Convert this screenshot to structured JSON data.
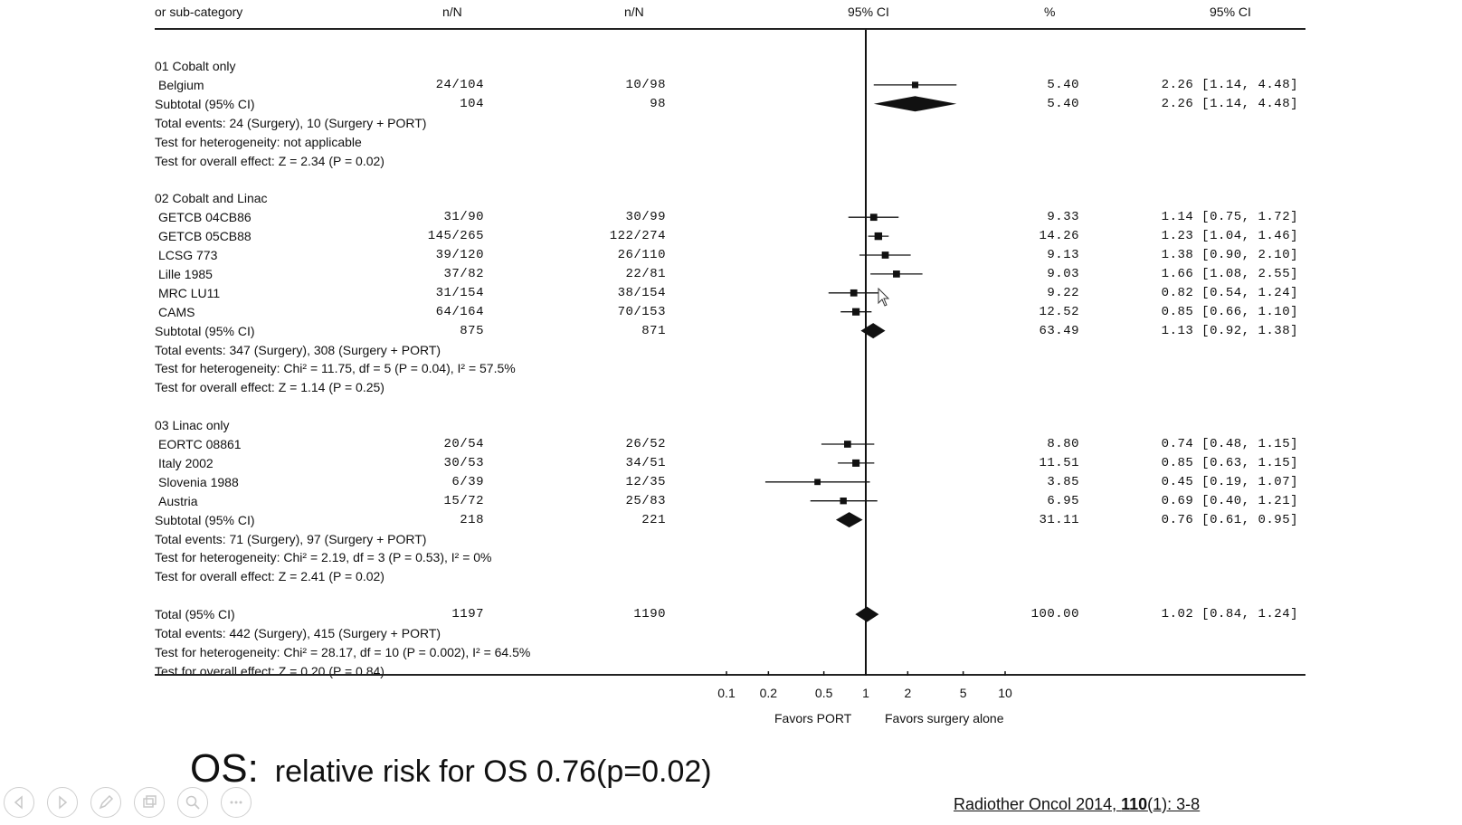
{
  "header": {
    "col_study": "or sub-category",
    "col_treatment": "n/N",
    "col_control": "n/N",
    "col_plot": "95% CI",
    "col_weight": "%",
    "col_ci": "95% CI"
  },
  "groups": [
    {
      "title": "01 Cobalt only",
      "studies": [
        {
          "name": "Belgium",
          "n1": "24/104",
          "n2": "10/98",
          "weight": "5.40",
          "ci_text": "2.26 [1.14, 4.48]",
          "rr": 2.26,
          "lo": 1.14,
          "hi": 4.48
        }
      ],
      "subtotal": {
        "label": "Subtotal (95% CI)",
        "n1": "104",
        "n2": "98",
        "weight": "5.40",
        "ci_text": "2.26 [1.14, 4.48]",
        "rr": 2.26,
        "lo": 1.14,
        "hi": 4.48
      },
      "notes": [
        "Total events: 24 (Surgery), 10 (Surgery + PORT)",
        "Test for heterogeneity: not applicable",
        "Test for overall effect: Z = 2.34 (P = 0.02)"
      ]
    },
    {
      "title": "02 Cobalt and Linac",
      "studies": [
        {
          "name": "GETCB 04CB86",
          "n1": "31/90",
          "n2": "30/99",
          "weight": "9.33",
          "ci_text": "1.14 [0.75, 1.72]",
          "rr": 1.14,
          "lo": 0.75,
          "hi": 1.72
        },
        {
          "name": "GETCB 05CB88",
          "n1": "145/265",
          "n2": "122/274",
          "weight": "14.26",
          "ci_text": "1.23 [1.04, 1.46]",
          "rr": 1.23,
          "lo": 1.04,
          "hi": 1.46
        },
        {
          "name": "LCSG 773",
          "n1": "39/120",
          "n2": "26/110",
          "weight": "9.13",
          "ci_text": "1.38 [0.90, 2.10]",
          "rr": 1.38,
          "lo": 0.9,
          "hi": 2.1
        },
        {
          "name": "Lille 1985",
          "n1": "37/82",
          "n2": "22/81",
          "weight": "9.03",
          "ci_text": "1.66 [1.08, 2.55]",
          "rr": 1.66,
          "lo": 1.08,
          "hi": 2.55
        },
        {
          "name": "MRC LU11",
          "n1": "31/154",
          "n2": "38/154",
          "weight": "9.22",
          "ci_text": "0.82 [0.54, 1.24]",
          "rr": 0.82,
          "lo": 0.54,
          "hi": 1.24
        },
        {
          "name": "CAMS",
          "n1": "64/164",
          "n2": "70/153",
          "weight": "12.52",
          "ci_text": "0.85 [0.66, 1.10]",
          "rr": 0.85,
          "lo": 0.66,
          "hi": 1.1
        }
      ],
      "subtotal": {
        "label": "Subtotal (95% CI)",
        "n1": "875",
        "n2": "871",
        "weight": "63.49",
        "ci_text": "1.13 [0.92, 1.38]",
        "rr": 1.13,
        "lo": 0.92,
        "hi": 1.38
      },
      "notes": [
        "Total events: 347 (Surgery), 308 (Surgery + PORT)",
        "Test for heterogeneity: Chi² = 11.75, df = 5 (P = 0.04), I² = 57.5%",
        "Test for overall effect: Z = 1.14 (P = 0.25)"
      ]
    },
    {
      "title": "03 Linac only",
      "studies": [
        {
          "name": "EORTC 08861",
          "n1": "20/54",
          "n2": "26/52",
          "weight": "8.80",
          "ci_text": "0.74 [0.48, 1.15]",
          "rr": 0.74,
          "lo": 0.48,
          "hi": 1.15
        },
        {
          "name": "Italy 2002",
          "n1": "30/53",
          "n2": "34/51",
          "weight": "11.51",
          "ci_text": "0.85 [0.63, 1.15]",
          "rr": 0.85,
          "lo": 0.63,
          "hi": 1.15
        },
        {
          "name": "Slovenia 1988",
          "n1": "6/39",
          "n2": "12/35",
          "weight": "3.85",
          "ci_text": "0.45 [0.19, 1.07]",
          "rr": 0.45,
          "lo": 0.19,
          "hi": 1.07
        },
        {
          "name": "Austria",
          "n1": "15/72",
          "n2": "25/83",
          "weight": "6.95",
          "ci_text": "0.69 [0.40, 1.21]",
          "rr": 0.69,
          "lo": 0.4,
          "hi": 1.21
        }
      ],
      "subtotal": {
        "label": "Subtotal (95% CI)",
        "n1": "218",
        "n2": "221",
        "weight": "31.11",
        "ci_text": "0.76 [0.61, 0.95]",
        "rr": 0.76,
        "lo": 0.61,
        "hi": 0.95
      },
      "notes": [
        "Total events: 71 (Surgery), 97 (Surgery + PORT)",
        "Test for heterogeneity: Chi² = 2.19, df = 3 (P = 0.53), I² = 0%",
        "Test for overall effect: Z = 2.41 (P = 0.02)"
      ]
    }
  ],
  "total": {
    "label": "Total (95% CI)",
    "n1": "1197",
    "n2": "1190",
    "weight": "100.00",
    "ci_text": "1.02 [0.84, 1.24]",
    "rr": 1.02,
    "lo": 0.84,
    "hi": 1.24,
    "notes": [
      "Total events: 442 (Surgery), 415 (Surgery + PORT)",
      "Test for heterogeneity: Chi² = 28.17, df = 10 (P = 0.002), I² = 64.5%",
      "Test for overall effect: Z = 0.20 (P = 0.84)"
    ]
  },
  "axis": {
    "ticks": [
      0.1,
      0.2,
      0.5,
      1,
      2,
      5,
      10
    ],
    "tick_labels": [
      "0.1",
      "0.2",
      "0.5",
      "1",
      "2",
      "5",
      "10"
    ],
    "favors_left": "Favors PORT",
    "favors_right": "Favors surgery alone",
    "scale": "log"
  },
  "caption": {
    "lead": "OS:",
    "text": "relative risk for OS 0.76(p=0.02)"
  },
  "citation": {
    "journal": "Radiother Oncol 2014, ",
    "volume": "110",
    "rest": "(1): 3-8"
  },
  "toolbar": {
    "icons": [
      "previous-icon",
      "next-icon",
      "pen-icon",
      "slides-icon",
      "zoom-icon",
      "more-icon"
    ]
  },
  "colors": {
    "ink": "#111111",
    "toolbar": "#c8c8c8"
  }
}
